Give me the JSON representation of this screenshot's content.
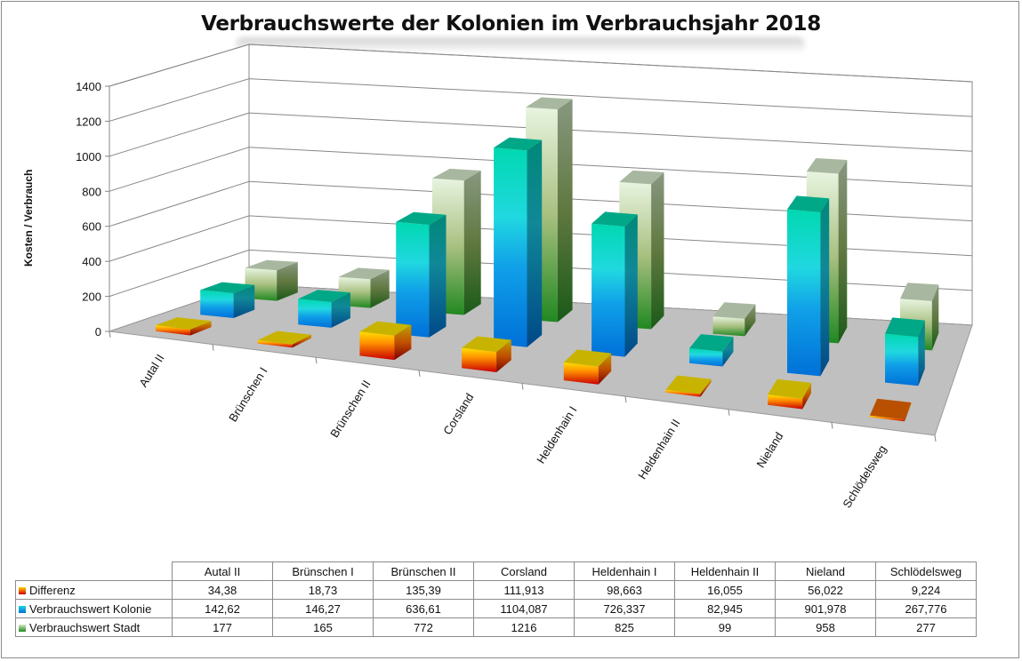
{
  "chart_data": {
    "type": "bar",
    "variant": "3d-column",
    "title": "Verbrauchswerte der Kolonien im Verbrauchsjahr 2018",
    "xlabel": "",
    "ylabel": "Kosten / Verbrauch",
    "ylim": [
      0,
      1400
    ],
    "yticks": [
      "0",
      "200",
      "400",
      "600",
      "800",
      "1000",
      "1200",
      "1400"
    ],
    "grid": true,
    "legend": "data-table-bottom",
    "categories": [
      "Autal II",
      "Brünschen I",
      "Brünschen II",
      "Corsland",
      "Heldenhain I",
      "Heldenhain II",
      "Nieland",
      "Schlödelsweg"
    ],
    "series": [
      {
        "name": "Differenz",
        "values": [
          34.38,
          18.73,
          135.39,
          111.913,
          98.663,
          16.055,
          56.022,
          9.224
        ],
        "labels": [
          "34,38",
          "18,73",
          "135,39",
          "111,913",
          "98,663",
          "16,055",
          "56,022",
          "9,224"
        ],
        "color_top": "#c8b400",
        "color_front_top": "#ffe000",
        "color_front_bottom": "#c80000",
        "color_key": "#e83000"
      },
      {
        "name": "Verbrauchswert Kolonie",
        "values": [
          142.62,
          146.27,
          636.61,
          1104.087,
          726.337,
          82.945,
          901.978,
          267.776
        ],
        "labels": [
          "142,62",
          "146,27",
          "636,61",
          "1104,087",
          "726,337",
          "82,945",
          "901,978",
          "267,776"
        ],
        "color_top": "#00a888",
        "color_front_top": "#00d8b0",
        "color_front_mid": "#20d8e0",
        "color_front_bottom": "#0070d8",
        "color_key": "#10a0e0"
      },
      {
        "name": "Verbrauchswert Stadt",
        "values": [
          177,
          165,
          772,
          1216,
          825,
          99,
          958,
          277
        ],
        "labels": [
          "177",
          "165",
          "772",
          "1216",
          "825",
          "99",
          "958",
          "277"
        ],
        "color_top": "#a8b8a0",
        "color_front_top": "#e8f4e0",
        "color_front_bottom": "#208820",
        "color_key": "#50a040"
      }
    ],
    "colors": {
      "floor": "#c0c0c0",
      "gridline": "#888888"
    }
  }
}
